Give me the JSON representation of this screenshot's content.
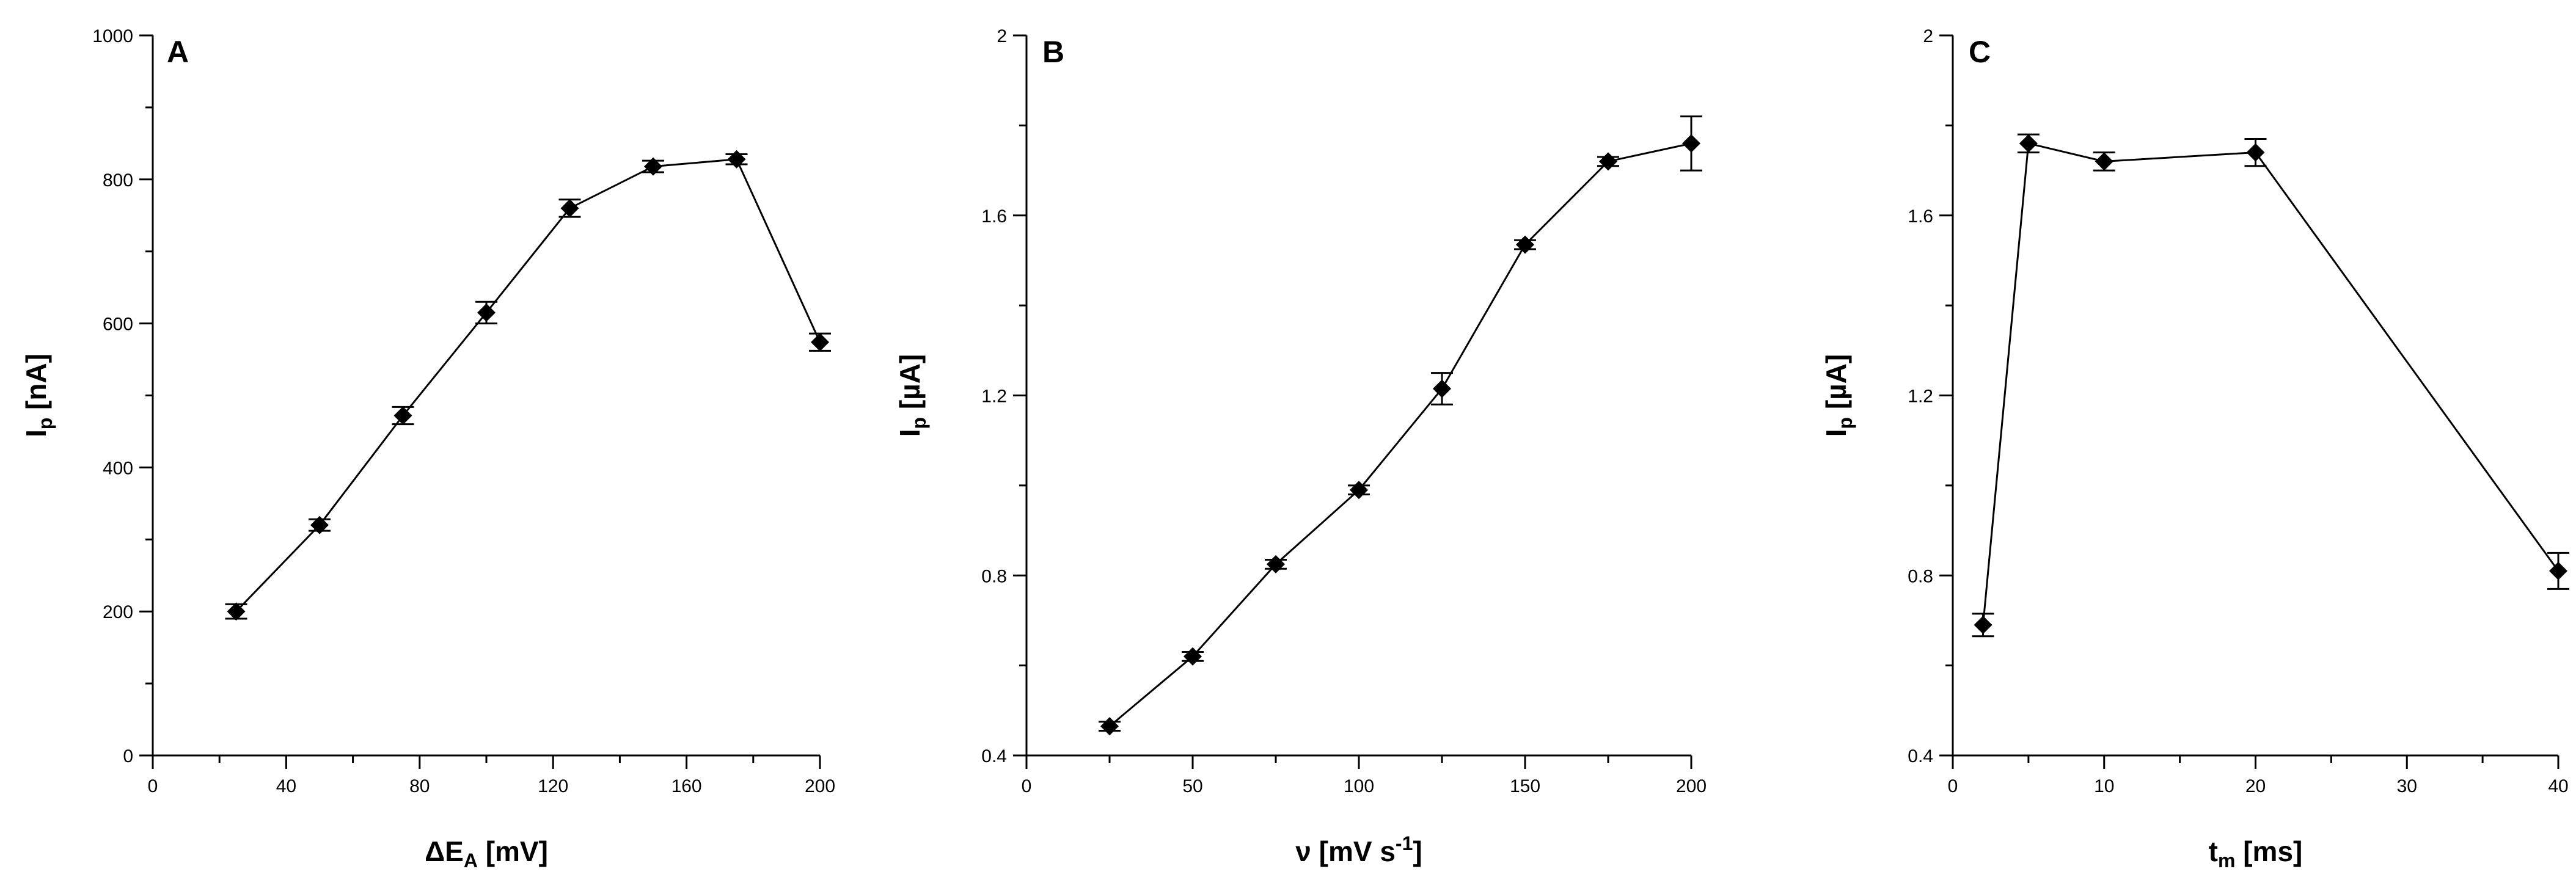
{
  "chart_data": [
    {
      "type": "line",
      "panel": "A",
      "xlabel": "ΔE",
      "xlabel_sub": "A",
      "xlabel_unit": " [mV]",
      "ylabel": "I",
      "ylabel_sub": "p",
      "ylabel_unit": " [nA]",
      "xlim": [
        0,
        200
      ],
      "ylim": [
        0,
        1000
      ],
      "xticks": [
        0,
        40,
        80,
        120,
        160,
        200
      ],
      "xtick_labels": [
        "0",
        "40",
        "80",
        "120",
        "160",
        "200"
      ],
      "yticks": [
        0,
        200,
        400,
        600,
        800,
        1000
      ],
      "ytick_labels": [
        "0",
        "200",
        "400",
        "600",
        "800",
        "1000"
      ],
      "series": [
        {
          "x": [
            25,
            50,
            75,
            100,
            125,
            150,
            175,
            200
          ],
          "y": [
            200,
            320,
            472,
            615,
            760,
            818,
            828,
            574
          ],
          "err": [
            10,
            8,
            12,
            15,
            12,
            8,
            7,
            12
          ]
        }
      ]
    },
    {
      "type": "line",
      "panel": "B",
      "xlabel": "ν",
      "xlabel_sub": "",
      "xlabel_unit": " [mV s",
      "xlabel_sup": "-1",
      "xlabel_end": "]",
      "ylabel": "I",
      "ylabel_sub": "p",
      "ylabel_unit": " [µA]",
      "xlim": [
        0,
        200
      ],
      "ylim": [
        0.4,
        2.0
      ],
      "xticks": [
        0,
        50,
        100,
        150,
        200
      ],
      "xtick_labels": [
        "0",
        "50",
        "100",
        "150",
        "200"
      ],
      "yticks": [
        0.4,
        0.8,
        1.2,
        1.6,
        2.0
      ],
      "ytick_labels": [
        "0.4",
        "0.8",
        "1.2",
        "1.6",
        "2"
      ],
      "series": [
        {
          "x": [
            25,
            50,
            75,
            100,
            125,
            150,
            175,
            200
          ],
          "y": [
            0.465,
            0.62,
            0.825,
            0.99,
            1.215,
            1.535,
            1.72,
            1.76
          ],
          "err": [
            0.01,
            0.01,
            0.01,
            0.01,
            0.035,
            0.01,
            0.01,
            0.06
          ]
        }
      ]
    },
    {
      "type": "line",
      "panel": "C",
      "xlabel": "t",
      "xlabel_sub": "m",
      "xlabel_unit": " [ms]",
      "ylabel": "I",
      "ylabel_sub": "p",
      "ylabel_unit": " [µA]",
      "xlim": [
        0,
        40
      ],
      "ylim": [
        0.4,
        2.0
      ],
      "xticks": [
        0,
        10,
        20,
        30,
        40
      ],
      "xtick_labels": [
        "0",
        "10",
        "20",
        "30",
        "40"
      ],
      "yticks": [
        0.4,
        0.8,
        1.2,
        1.6,
        2.0
      ],
      "ytick_labels": [
        "0.4",
        "0.8",
        "1.2",
        "1.6",
        "2"
      ],
      "series": [
        {
          "x": [
            2,
            5,
            10,
            20,
            40
          ],
          "y": [
            0.69,
            1.76,
            1.72,
            1.74,
            0.81
          ],
          "err": [
            0.025,
            0.02,
            0.02,
            0.03,
            0.04
          ]
        }
      ]
    }
  ]
}
